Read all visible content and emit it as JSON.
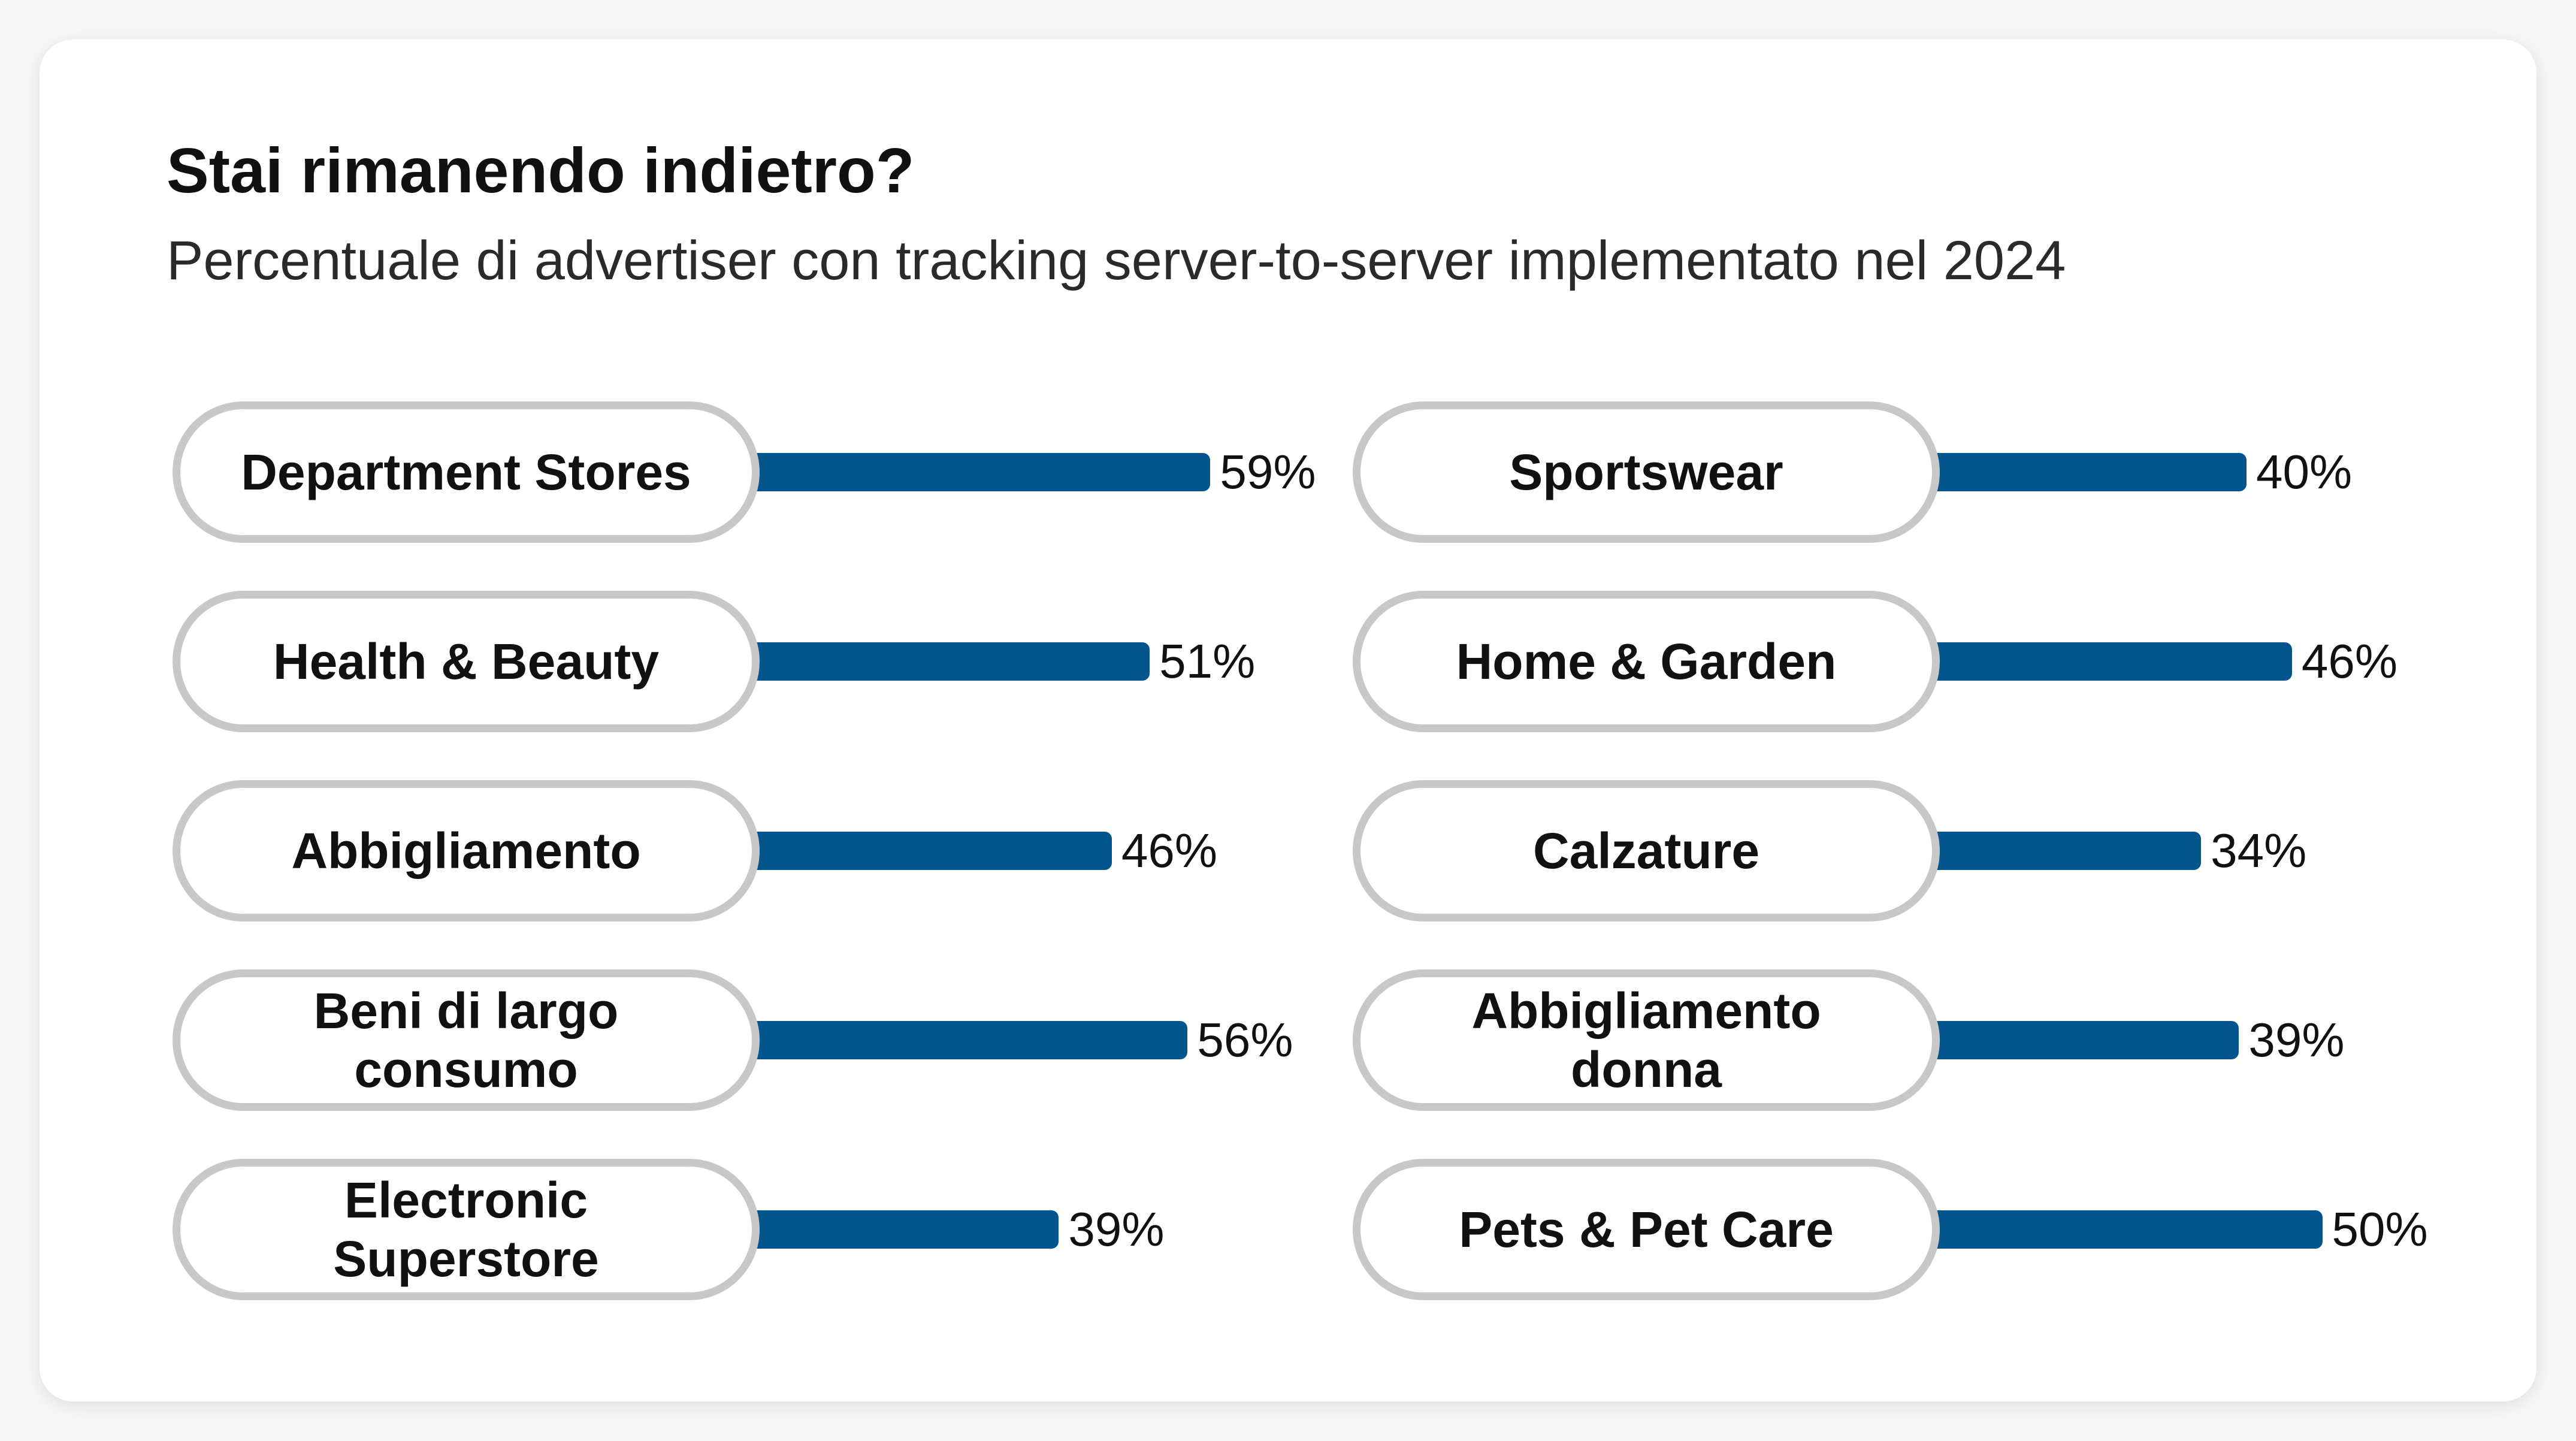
{
  "header": {
    "title": "Stai rimanendo indietro?",
    "subtitle": "Percentuale di advertiser con tracking server-to-server implementato nel 2024"
  },
  "colors": {
    "bar": "#04558d",
    "pill_border": "#c8c8c8",
    "card_background": "#ffffff"
  },
  "chart_data": {
    "type": "bar",
    "orientation": "horizontal",
    "title": "Stai rimanendo indietro?",
    "subtitle": "Percentuale di advertiser con tracking server-to-server implementato nel 2024",
    "unit": "%",
    "columns": [
      {
        "categories": [
          "Department Stores",
          "Health & Beauty",
          "Abbigliamento",
          "Beni di largo consumo",
          "Electronic Superstore"
        ],
        "values": [
          59,
          51,
          46,
          56,
          39
        ],
        "labels": [
          "59%",
          "51%",
          "46%",
          "56%",
          "39%"
        ]
      },
      {
        "categories": [
          "Sportswear",
          "Home & Garden",
          "Calzature",
          "Abbigliamento donna",
          "Pets & Pet Care"
        ],
        "values": [
          40,
          46,
          34,
          39,
          50
        ],
        "labels": [
          "40%",
          "46%",
          "34%",
          "39%",
          "50%"
        ]
      }
    ]
  }
}
